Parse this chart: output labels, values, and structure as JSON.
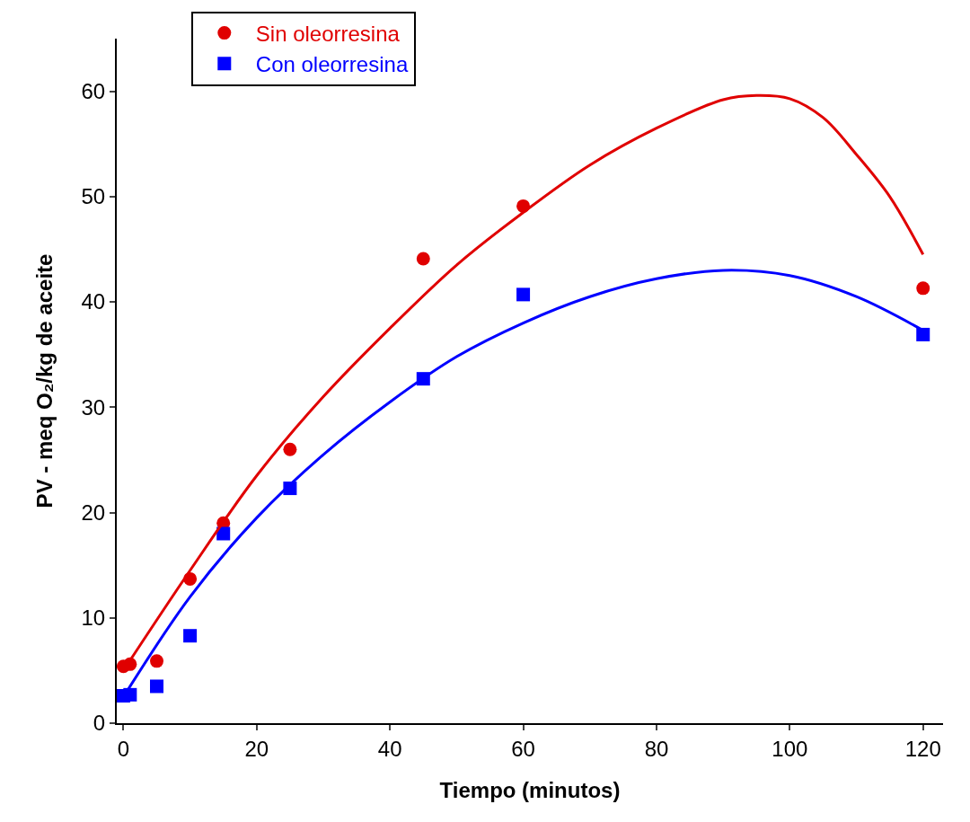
{
  "chart_data": {
    "type": "scatter",
    "xlabel": "Tiempo (minutos)",
    "ylabel": "PV - meq O₂/kg de aceite",
    "x": [
      0,
      1,
      5,
      10,
      15,
      25,
      45,
      60,
      120
    ],
    "series": [
      {
        "name": "Sin oleorresina",
        "color": "#e00000",
        "marker": "circle",
        "values": [
          5.4,
          5.6,
          5.9,
          13.7,
          19.0,
          26.0,
          44.1,
          49.1,
          41.3
        ]
      },
      {
        "name": "Con oleorresina",
        "color": "#0000ff",
        "marker": "square",
        "values": [
          2.6,
          2.7,
          3.5,
          8.3,
          18.0,
          22.3,
          32.7,
          40.7,
          36.9
        ]
      },
      {
        "type": "line",
        "color": "#e00000",
        "marker": "none",
        "x": [
          0,
          10,
          20,
          30,
          40,
          50,
          60,
          70,
          80,
          90,
          95,
          100,
          105,
          110,
          115,
          120
        ],
        "values": [
          5.0,
          14.5,
          23.5,
          31,
          37.5,
          43.5,
          48.5,
          53,
          56.5,
          59.2,
          59.6,
          59.3,
          57.5,
          54,
          50,
          44.5
        ]
      },
      {
        "type": "line",
        "color": "#0000ff",
        "marker": "none",
        "x": [
          0,
          10,
          20,
          30,
          40,
          50,
          60,
          70,
          80,
          90,
          100,
          110,
          120
        ],
        "values": [
          2.5,
          12,
          19.5,
          25.5,
          30.5,
          34.8,
          38,
          40.5,
          42.2,
          43,
          42.5,
          40.5,
          37.3
        ]
      }
    ],
    "xlim": [
      -1,
      123
    ],
    "ylim": [
      0,
      65
    ],
    "xticks": [
      0,
      20,
      40,
      60,
      80,
      100,
      120
    ],
    "yticks": [
      0,
      10,
      20,
      30,
      40,
      50,
      60
    ],
    "grid": false,
    "legend": "top left"
  }
}
